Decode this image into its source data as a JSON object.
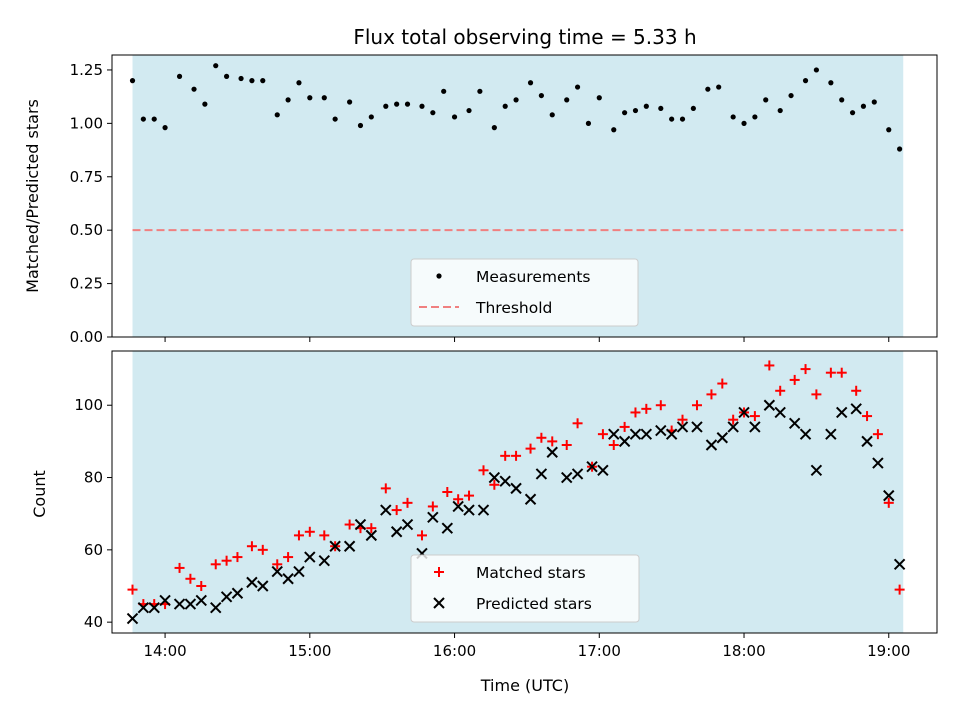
{
  "chart_data": [
    {
      "type": "scatter",
      "title": "Flux total observing time = 5.33 h",
      "xlabel": "",
      "ylabel": "Matched/Predicted stars",
      "xlim": [
        13.6333,
        19.3333
      ],
      "ylim": [
        0,
        1.32
      ],
      "yticks": [
        0.0,
        0.25,
        0.5,
        0.75,
        1.0,
        1.25
      ],
      "ytick_labels": [
        "0.00",
        "0.25",
        "0.50",
        "0.75",
        "1.00",
        "1.25"
      ],
      "xticks": [
        14,
        15,
        16,
        17,
        18,
        19
      ],
      "xtick_labels": [],
      "shaded_span": [
        13.775,
        19.1
      ],
      "shade_color": "#add8e6",
      "threshold": 0.5,
      "threshold_color": "#f08080",
      "grid": false,
      "legend_position": "lower center",
      "legend": [
        {
          "label": "Measurements",
          "marker": "dot",
          "color": "#000000"
        },
        {
          "label": "Threshold",
          "marker": "dashed-line",
          "color": "#f08080"
        }
      ],
      "series": [
        {
          "name": "Measurements",
          "color": "#000000",
          "x": [
            13.775,
            13.85,
            13.925,
            14.0,
            14.1,
            14.2,
            14.275,
            14.35,
            14.425,
            14.525,
            14.6,
            14.675,
            14.775,
            14.85,
            14.925,
            15.0,
            15.1,
            15.175,
            15.275,
            15.35,
            15.425,
            15.525,
            15.6,
            15.675,
            15.775,
            15.85,
            15.925,
            16.0,
            16.1,
            16.175,
            16.275,
            16.35,
            16.425,
            16.525,
            16.6,
            16.675,
            16.775,
            16.85,
            16.925,
            17.0,
            17.1,
            17.175,
            17.25,
            17.325,
            17.425,
            17.5,
            17.575,
            17.65,
            17.75,
            17.825,
            17.925,
            18.0,
            18.075,
            18.15,
            18.25,
            18.325,
            18.425,
            18.5,
            18.6,
            18.675,
            18.75,
            18.825,
            18.9,
            19.0,
            19.075
          ],
          "y": [
            1.2,
            1.02,
            1.02,
            0.98,
            1.22,
            1.16,
            1.09,
            1.27,
            1.22,
            1.21,
            1.2,
            1.2,
            1.04,
            1.11,
            1.19,
            1.12,
            1.12,
            1.02,
            1.1,
            0.99,
            1.03,
            1.08,
            1.09,
            1.09,
            1.08,
            1.05,
            1.15,
            1.03,
            1.06,
            1.15,
            0.98,
            1.08,
            1.11,
            1.19,
            1.13,
            1.04,
            1.11,
            1.17,
            1.0,
            1.12,
            0.97,
            1.05,
            1.06,
            1.08,
            1.07,
            1.02,
            1.02,
            1.07,
            1.16,
            1.17,
            1.03,
            1.0,
            1.03,
            1.11,
            1.06,
            1.13,
            1.2,
            1.25,
            1.19,
            1.11,
            1.05,
            1.08,
            1.1,
            0.97,
            0.88
          ]
        }
      ]
    },
    {
      "type": "scatter",
      "title": "",
      "xlabel": "Time (UTC)",
      "ylabel": "Count",
      "xlim": [
        13.6333,
        19.3333
      ],
      "ylim": [
        37,
        115
      ],
      "yticks": [
        40,
        60,
        80,
        100
      ],
      "ytick_labels": [
        "40",
        "60",
        "80",
        "100"
      ],
      "xticks": [
        14,
        15,
        16,
        17,
        18,
        19
      ],
      "xtick_labels": [
        "14:00",
        "15:00",
        "16:00",
        "17:00",
        "18:00",
        "19:00"
      ],
      "shaded_span": [
        13.775,
        19.1
      ],
      "shade_color": "#add8e6",
      "grid": false,
      "legend_position": "lower center",
      "legend": [
        {
          "label": "Matched stars",
          "marker": "plus",
          "color": "#ff0000"
        },
        {
          "label": "Predicted stars",
          "marker": "x",
          "color": "#000000"
        }
      ],
      "series": [
        {
          "name": "Matched stars",
          "marker": "plus",
          "color": "#ff0000",
          "x": [
            13.775,
            13.85,
            13.925,
            14.0,
            14.1,
            14.175,
            14.25,
            14.35,
            14.425,
            14.5,
            14.6,
            14.675,
            14.775,
            14.85,
            14.925,
            15.0,
            15.1,
            15.175,
            15.275,
            15.35,
            15.425,
            15.525,
            15.6,
            15.675,
            15.775,
            15.85,
            15.95,
            16.025,
            16.1,
            16.2,
            16.275,
            16.35,
            16.425,
            16.525,
            16.6,
            16.675,
            16.775,
            16.85,
            16.95,
            17.025,
            17.1,
            17.175,
            17.25,
            17.325,
            17.425,
            17.5,
            17.575,
            17.675,
            17.775,
            17.85,
            17.925,
            18.0,
            18.075,
            18.175,
            18.25,
            18.35,
            18.425,
            18.5,
            18.6,
            18.675,
            18.775,
            18.85,
            18.925,
            19.0,
            19.075
          ],
          "y": [
            49,
            45,
            45,
            45,
            55,
            52,
            50,
            56,
            57,
            58,
            61,
            60,
            56,
            58,
            64,
            65,
            64,
            61,
            67,
            66,
            66,
            77,
            71,
            73,
            64,
            72,
            76,
            74,
            75,
            82,
            78,
            86,
            86,
            88,
            91,
            90,
            89,
            95,
            83,
            92,
            89,
            94,
            98,
            99,
            100,
            93,
            96,
            100,
            103,
            106,
            96,
            98,
            97,
            111,
            104,
            107,
            110,
            103,
            109,
            109,
            104,
            97,
            92,
            73,
            49
          ]
        },
        {
          "name": "Predicted stars",
          "marker": "x",
          "color": "#000000",
          "x": [
            13.775,
            13.85,
            13.925,
            14.0,
            14.1,
            14.175,
            14.25,
            14.35,
            14.425,
            14.5,
            14.6,
            14.675,
            14.775,
            14.85,
            14.925,
            15.0,
            15.1,
            15.175,
            15.275,
            15.35,
            15.425,
            15.525,
            15.6,
            15.675,
            15.775,
            15.85,
            15.95,
            16.025,
            16.1,
            16.2,
            16.275,
            16.35,
            16.425,
            16.525,
            16.6,
            16.675,
            16.775,
            16.85,
            16.95,
            17.025,
            17.1,
            17.175,
            17.25,
            17.325,
            17.425,
            17.5,
            17.575,
            17.675,
            17.775,
            17.85,
            17.925,
            18.0,
            18.075,
            18.175,
            18.25,
            18.35,
            18.425,
            18.5,
            18.6,
            18.675,
            18.775,
            18.85,
            18.925,
            19.0,
            19.075
          ],
          "y": [
            41,
            44,
            44,
            46,
            45,
            45,
            46,
            44,
            47,
            48,
            51,
            50,
            54,
            52,
            54,
            58,
            57,
            61,
            61,
            67,
            64,
            71,
            65,
            67,
            59,
            69,
            66,
            72,
            71,
            71,
            80,
            79,
            77,
            74,
            81,
            87,
            80,
            81,
            83,
            82,
            92,
            90,
            92,
            92,
            93,
            92,
            94,
            94,
            89,
            91,
            94,
            98,
            94,
            100,
            98,
            95,
            92,
            82,
            92,
            98,
            99,
            90,
            84,
            75,
            56
          ]
        }
      ]
    }
  ]
}
